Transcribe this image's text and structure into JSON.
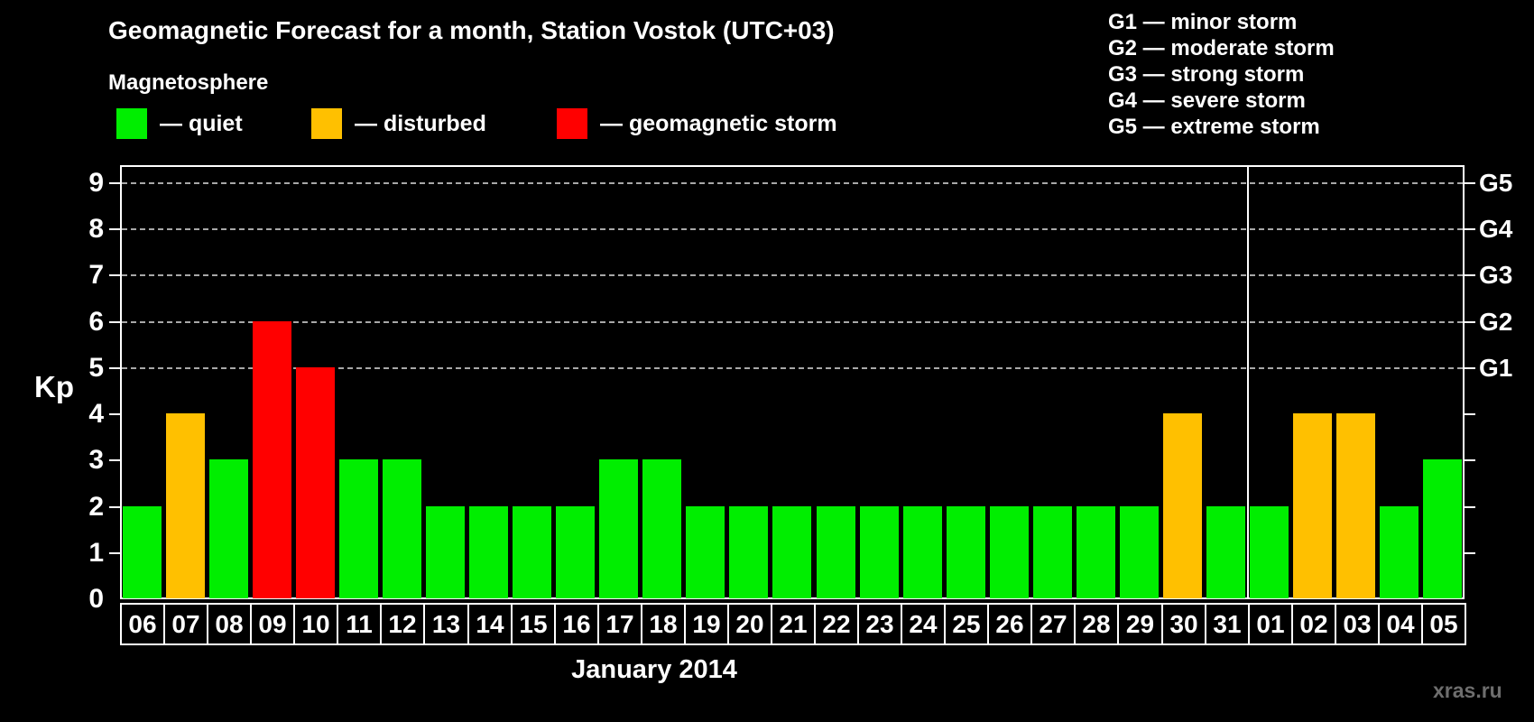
{
  "title": "Geomagnetic Forecast for a month, Station Vostok (UTC+03)",
  "legend": {
    "heading": "Magnetosphere",
    "items": [
      {
        "key": "quiet",
        "label": "— quiet"
      },
      {
        "key": "disturbed",
        "label": "— disturbed"
      },
      {
        "key": "storm",
        "label": "— geomagnetic storm"
      }
    ]
  },
  "g_scale_legend": [
    "G1 — minor storm",
    "G2 — moderate storm",
    "G3 — strong storm",
    "G4 — severe storm",
    "G5 — extreme storm"
  ],
  "watermark": "xras.ru",
  "colors": {
    "quiet": "#00ee00",
    "disturbed": "#ffc000",
    "storm": "#ff0000",
    "axis": "#ffffff",
    "gridline": "#a8a8a8",
    "background": "#000000",
    "watermark_text": "#6e6e6e"
  },
  "chart_data": {
    "type": "bar",
    "title": "Geomagnetic Forecast for a month, Station Vostok (UTC+03)",
    "xlabel": "January 2014",
    "ylabel": "Kp",
    "ylim": [
      0,
      9.4
    ],
    "yticks": [
      0,
      1,
      2,
      3,
      4,
      5,
      6,
      7,
      8,
      9
    ],
    "gridlines_at": [
      5,
      6,
      7,
      8,
      9
    ],
    "grid": "dashed horizontal at Kp 5-9 only",
    "legend_position": "top",
    "right_axis": [
      {
        "kp": 5,
        "label": "G1"
      },
      {
        "kp": 6,
        "label": "G2"
      },
      {
        "kp": 7,
        "label": "G3"
      },
      {
        "kp": 8,
        "label": "G4"
      },
      {
        "kp": 9,
        "label": "G5"
      }
    ],
    "categories": [
      "06",
      "07",
      "08",
      "09",
      "10",
      "11",
      "12",
      "13",
      "14",
      "15",
      "16",
      "17",
      "18",
      "19",
      "20",
      "21",
      "22",
      "23",
      "24",
      "25",
      "26",
      "27",
      "28",
      "29",
      "30",
      "31",
      "01",
      "02",
      "03",
      "04",
      "05"
    ],
    "values": [
      2,
      4,
      3,
      6,
      5,
      3,
      3,
      2,
      2,
      2,
      2,
      3,
      3,
      2,
      2,
      2,
      2,
      2,
      2,
      2,
      2,
      2,
      2,
      2,
      4,
      2,
      2,
      4,
      4,
      2,
      3
    ],
    "statuses": [
      "quiet",
      "disturbed",
      "quiet",
      "storm",
      "storm",
      "quiet",
      "quiet",
      "quiet",
      "quiet",
      "quiet",
      "quiet",
      "quiet",
      "quiet",
      "quiet",
      "quiet",
      "quiet",
      "quiet",
      "quiet",
      "quiet",
      "quiet",
      "quiet",
      "quiet",
      "quiet",
      "quiet",
      "disturbed",
      "quiet",
      "quiet",
      "disturbed",
      "disturbed",
      "quiet",
      "quiet"
    ],
    "month_separator_after_index": 25
  }
}
